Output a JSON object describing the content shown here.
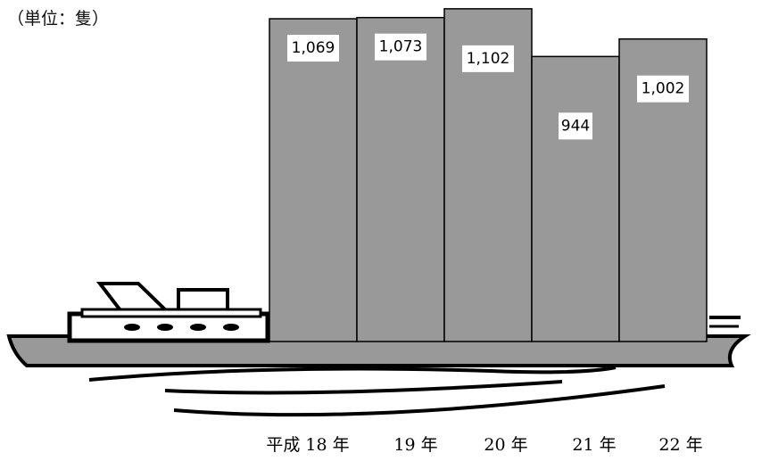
{
  "chart_data": {
    "type": "bar",
    "unit_label": "（単位：隻）",
    "categories": [
      "平成 18 年",
      "19 年",
      "20 年",
      "21 年",
      "22 年"
    ],
    "values": [
      1069,
      1073,
      1102,
      944,
      1002
    ],
    "value_labels": [
      "1,069",
      "1,073",
      "1,102",
      "944",
      "1,002"
    ],
    "bar_color": "#999999",
    "ship_color": "#999999",
    "grid": false
  }
}
